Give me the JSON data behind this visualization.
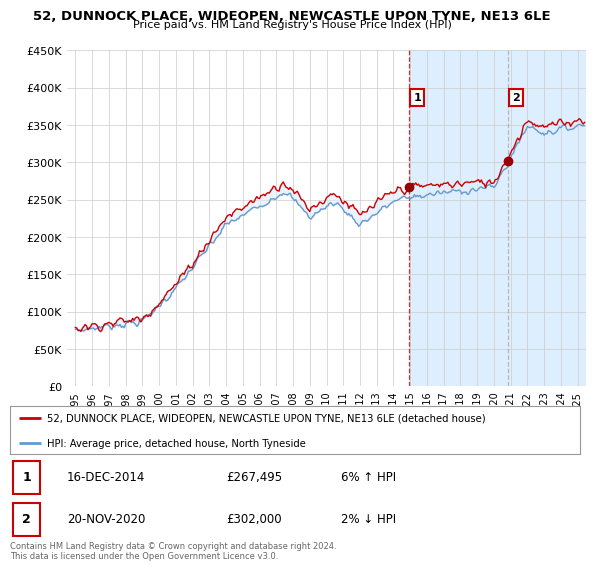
{
  "title": "52, DUNNOCK PLACE, WIDEOPEN, NEWCASTLE UPON TYNE, NE13 6LE",
  "subtitle": "Price paid vs. HM Land Registry's House Price Index (HPI)",
  "ylim": [
    0,
    450000
  ],
  "yticks": [
    0,
    50000,
    100000,
    150000,
    200000,
    250000,
    300000,
    350000,
    400000,
    450000
  ],
  "ytick_labels": [
    "£0",
    "£50K",
    "£100K",
    "£150K",
    "£200K",
    "£250K",
    "£300K",
    "£350K",
    "£400K",
    "£450K"
  ],
  "hpi_color": "#6699cc",
  "price_color": "#cc0000",
  "fill_color": "#ddeeff",
  "background_left": "#ffffff",
  "background_right": "#ddeeff",
  "point1_color": "#990000",
  "point2_color": "#990000",
  "vline1_color": "#cc0000",
  "vline2_color": "#aaaaaa",
  "legend_line1": "52, DUNNOCK PLACE, WIDEOPEN, NEWCASTLE UPON TYNE, NE13 6LE (detached house)",
  "legend_line2": "HPI: Average price, detached house, North Tyneside",
  "table_row1_num": "1",
  "table_row1_date": "16-DEC-2014",
  "table_row1_price": "£267,495",
  "table_row1_hpi": "6% ↑ HPI",
  "table_row2_num": "2",
  "table_row2_date": "20-NOV-2020",
  "table_row2_price": "£302,000",
  "table_row2_hpi": "2% ↓ HPI",
  "footer": "Contains HM Land Registry data © Crown copyright and database right 2024.\nThis data is licensed under the Open Government Licence v3.0.",
  "background_color": "#ffffff",
  "p1_x": 2014.917,
  "p1_y": 267495,
  "p2_x": 2020.833,
  "p2_y": 302000,
  "xmin": 1994.5,
  "xmax": 2025.5
}
